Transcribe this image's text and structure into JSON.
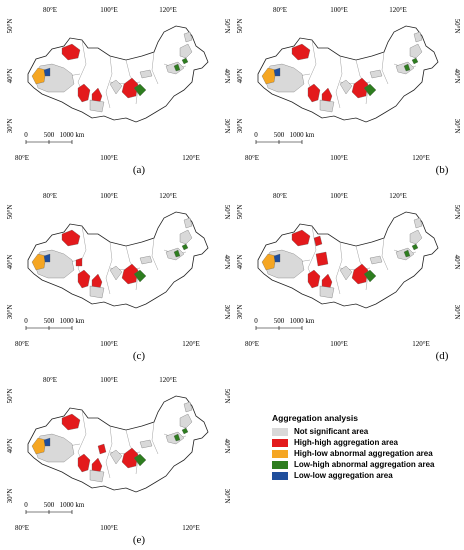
{
  "axes": {
    "top_ticks": [
      "80°E",
      "100°E",
      "120°E"
    ],
    "bottom_ticks": [
      "80°E",
      "100°E",
      "120°E"
    ],
    "left_ticks": [
      "50°N",
      "40°N",
      "30°N"
    ],
    "right_ticks": [
      "50°N",
      "40°N",
      "30°N"
    ]
  },
  "scale_bar": {
    "labels": [
      "0",
      "500",
      "1000 km"
    ]
  },
  "panels": [
    {
      "caption": "(a)"
    },
    {
      "caption": "(b)"
    },
    {
      "caption": "(c)"
    },
    {
      "caption": "(d)"
    },
    {
      "caption": "(e)"
    }
  ],
  "legend": {
    "title": "Aggregation analysis",
    "items": [
      {
        "label": "Not significant area",
        "color": "#d9d9d9"
      },
      {
        "label": "High-high aggregation area",
        "color": "#e31a1c"
      },
      {
        "label": "High-low abnormal aggregation area",
        "color": "#f5a623"
      },
      {
        "label": "Low-high abnormal aggregation area",
        "color": "#2e7d1f"
      },
      {
        "label": "Low-low aggregation area",
        "color": "#1f4e9c"
      }
    ]
  }
}
